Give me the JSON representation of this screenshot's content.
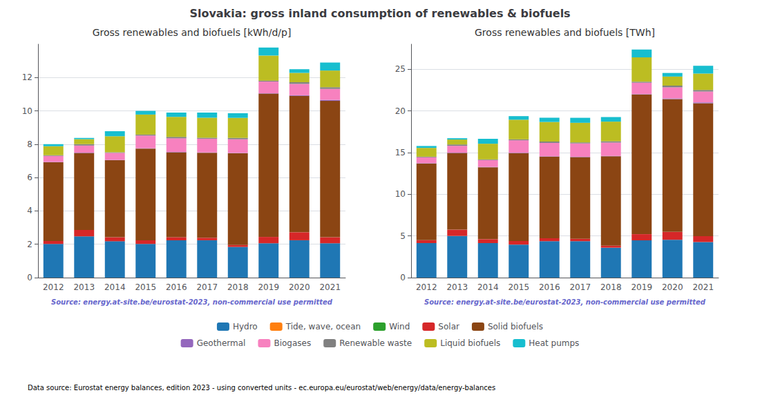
{
  "title": "Slovakia: gross inland consumption of renewables & biofuels",
  "annotations": [
    {
      "text": "Data source: Eurostat energy balances, edition 2023 - using converted units - ec.europa.eu/eurostat/web/energy/data/energy-balances"
    }
  ],
  "legend": "bottom",
  "chart_data": [
    {
      "type": "bar",
      "stacked": true,
      "grid": true,
      "title": "Gross renewables and biofuels [kWh/d/p]",
      "annotations": [
        {
          "text": "Source: energy.at-site.be/eurostat-2023, non-commercial use permitted",
          "color": "#6666cc"
        }
      ],
      "categories": [
        2012,
        2013,
        2014,
        2015,
        2016,
        2017,
        2018,
        2019,
        2020,
        2021
      ],
      "ylim": [
        0,
        14
      ],
      "yticks": [
        0,
        2,
        4,
        6,
        8,
        10,
        12
      ],
      "series": [
        {
          "name": "Hydro",
          "color": "#1f77b4",
          "values": [
            2.02,
            2.48,
            2.18,
            2.02,
            2.24,
            2.24,
            1.84,
            2.06,
            2.24,
            2.06
          ]
        },
        {
          "name": "Tide, wave, ocean",
          "color": "#ff7f0e",
          "values": [
            0.0,
            0.0,
            0.0,
            0.0,
            0.0,
            0.0,
            0.0,
            0.0,
            0.0,
            0.0
          ]
        },
        {
          "name": "Wind",
          "color": "#2ca02c",
          "values": [
            0.0,
            0.0,
            0.0,
            0.0,
            0.0,
            0.0,
            0.0,
            0.0,
            0.0,
            0.0
          ]
        },
        {
          "name": "Solar",
          "color": "#d62728",
          "values": [
            0.18,
            0.38,
            0.24,
            0.22,
            0.18,
            0.15,
            0.12,
            0.38,
            0.48,
            0.36
          ]
        },
        {
          "name": "Solid biofuels",
          "color": "#8B4513",
          "values": [
            4.72,
            4.62,
            4.62,
            5.5,
            5.1,
            5.1,
            5.5,
            8.6,
            8.18,
            8.18
          ]
        },
        {
          "name": "Geothermal",
          "color": "#9467bd",
          "values": [
            0.02,
            0.02,
            0.02,
            0.02,
            0.02,
            0.02,
            0.02,
            0.02,
            0.04,
            0.06
          ]
        },
        {
          "name": "Biogases",
          "color": "#f781bf",
          "values": [
            0.36,
            0.42,
            0.42,
            0.76,
            0.82,
            0.82,
            0.82,
            0.7,
            0.68,
            0.66
          ]
        },
        {
          "name": "Renewable waste",
          "color": "#808080",
          "values": [
            0.04,
            0.08,
            0.04,
            0.06,
            0.08,
            0.06,
            0.08,
            0.06,
            0.1,
            0.1
          ]
        },
        {
          "name": "Liquid biofuels",
          "color": "#bcbd22",
          "values": [
            0.54,
            0.3,
            0.96,
            1.2,
            1.2,
            1.2,
            1.2,
            1.5,
            0.56,
            1.0
          ]
        },
        {
          "name": "Heat pumps",
          "color": "#17becf",
          "values": [
            0.12,
            0.08,
            0.3,
            0.22,
            0.26,
            0.31,
            0.28,
            0.48,
            0.22,
            0.48
          ]
        }
      ]
    },
    {
      "type": "bar",
      "stacked": true,
      "grid": true,
      "title": "Gross renewables and biofuels [TWh]",
      "annotations": [
        {
          "text": "Source: energy.at-site.be/eurostat-2023, non-commercial use permitted",
          "color": "#6666cc"
        }
      ],
      "categories": [
        2012,
        2013,
        2014,
        2015,
        2016,
        2017,
        2018,
        2019,
        2020,
        2021
      ],
      "ylim": [
        0,
        28
      ],
      "yticks": [
        0,
        5,
        10,
        15,
        20,
        25
      ],
      "series": [
        {
          "name": "Hydro",
          "color": "#1f77b4",
          "values": [
            4.14,
            5.0,
            4.14,
            3.96,
            4.37,
            4.37,
            3.59,
            4.47,
            4.54,
            4.27
          ]
        },
        {
          "name": "Tide, wave, ocean",
          "color": "#ff7f0e",
          "values": [
            0.0,
            0.0,
            0.0,
            0.0,
            0.0,
            0.0,
            0.0,
            0.0,
            0.0,
            0.0
          ]
        },
        {
          "name": "Wind",
          "color": "#2ca02c",
          "values": [
            0.0,
            0.0,
            0.0,
            0.0,
            0.0,
            0.0,
            0.0,
            0.0,
            0.0,
            0.0
          ]
        },
        {
          "name": "Solar",
          "color": "#d62728",
          "values": [
            0.35,
            0.75,
            0.47,
            0.43,
            0.35,
            0.29,
            0.24,
            0.74,
            0.94,
            0.7
          ]
        },
        {
          "name": "Solid biofuels",
          "color": "#8B4513",
          "values": [
            9.2,
            9.2,
            8.63,
            10.55,
            9.8,
            9.8,
            10.73,
            16.77,
            15.94,
            15.94
          ]
        },
        {
          "name": "Geothermal",
          "color": "#9467bd",
          "values": [
            0.04,
            0.04,
            0.04,
            0.04,
            0.04,
            0.04,
            0.04,
            0.04,
            0.08,
            0.12
          ]
        },
        {
          "name": "Biogases",
          "color": "#f781bf",
          "values": [
            0.7,
            0.82,
            0.82,
            1.49,
            1.6,
            1.6,
            1.6,
            1.36,
            1.33,
            1.29
          ]
        },
        {
          "name": "Renewable waste",
          "color": "#808080",
          "values": [
            0.08,
            0.16,
            0.08,
            0.12,
            0.16,
            0.12,
            0.16,
            0.12,
            0.2,
            0.2
          ]
        },
        {
          "name": "Liquid biofuels",
          "color": "#bcbd22",
          "values": [
            1.05,
            0.59,
            1.88,
            2.35,
            2.35,
            2.35,
            2.35,
            2.92,
            1.09,
            1.96
          ]
        },
        {
          "name": "Heat pumps",
          "color": "#17becf",
          "values": [
            0.23,
            0.16,
            0.59,
            0.43,
            0.51,
            0.6,
            0.55,
            0.94,
            0.43,
            0.94
          ]
        }
      ]
    }
  ]
}
